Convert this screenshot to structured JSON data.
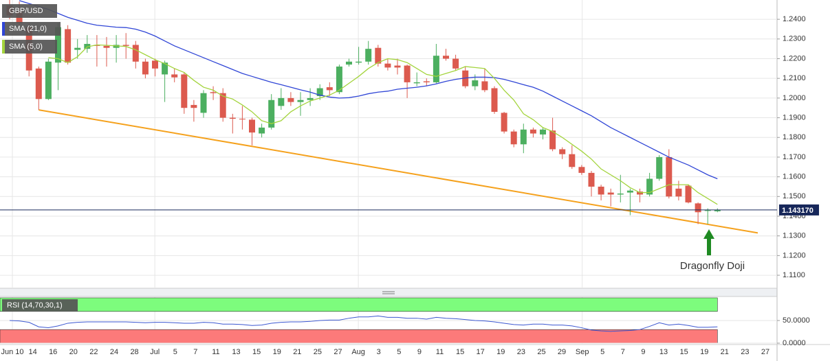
{
  "chart_data": [
    {
      "type": "candlestick",
      "symbol": "GBP/USD",
      "up_color": "#4caf60",
      "down_color": "#dc5a4e",
      "open": [
        1.247,
        1.244,
        1.236,
        1.215,
        1.1995,
        1.218,
        1.235,
        1.2245,
        1.225,
        1.227,
        1.2265,
        1.2255,
        1.227,
        1.227,
        1.2185,
        1.219,
        1.212,
        1.212,
        1.212,
        1.1965,
        1.1925,
        1.203,
        1.2025,
        1.19,
        1.1895,
        1.189,
        1.182,
        1.185,
        1.196,
        1.2,
        1.198,
        1.199,
        1.201,
        1.2055,
        1.203,
        1.217,
        1.218,
        1.2185,
        1.2255,
        1.2175,
        1.2165,
        1.2165,
        1.2075,
        1.2085,
        1.208,
        1.2215,
        1.22,
        1.214,
        1.206,
        1.2085,
        1.205,
        1.1925,
        1.183,
        1.1765,
        1.184,
        1.1815,
        1.1835,
        1.174,
        1.1715,
        1.165,
        1.162,
        1.155,
        1.152,
        1.151,
        1.152,
        1.1525,
        1.151,
        1.159,
        1.17,
        1.154,
        1.1555,
        1.1465,
        1.143,
        1.1425
      ],
      "high": [
        1.2498,
        1.249,
        1.238,
        1.216,
        1.22,
        1.238,
        1.237,
        1.23,
        1.232,
        1.232,
        1.231,
        1.232,
        1.233,
        1.229,
        1.22,
        1.22,
        1.219,
        1.215,
        1.213,
        1.199,
        1.204,
        1.206,
        1.205,
        1.192,
        1.196,
        1.19,
        1.187,
        1.202,
        1.205,
        1.203,
        1.203,
        1.205,
        1.207,
        1.208,
        1.217,
        1.22,
        1.226,
        1.229,
        1.227,
        1.22,
        1.22,
        1.217,
        1.213,
        1.21,
        1.2275,
        1.225,
        1.222,
        1.216,
        1.212,
        1.215,
        1.206,
        1.193,
        1.184,
        1.187,
        1.185,
        1.185,
        1.19,
        1.175,
        1.176,
        1.166,
        1.163,
        1.156,
        1.154,
        1.161,
        1.154,
        1.154,
        1.162,
        1.171,
        1.174,
        1.158,
        1.156,
        1.147,
        1.144,
        1.144
      ],
      "low": [
        1.24,
        1.236,
        1.211,
        1.194,
        1.199,
        1.204,
        1.217,
        1.22,
        1.223,
        1.216,
        1.216,
        1.218,
        1.22,
        1.215,
        1.21,
        1.211,
        1.198,
        1.208,
        1.192,
        1.188,
        1.19,
        1.199,
        1.188,
        1.182,
        1.184,
        1.176,
        1.18,
        1.184,
        1.194,
        1.196,
        1.191,
        1.196,
        1.199,
        1.201,
        1.202,
        1.216,
        1.217,
        1.217,
        1.216,
        1.214,
        1.212,
        1.2,
        1.206,
        1.206,
        1.2075,
        1.219,
        1.214,
        1.205,
        1.204,
        1.203,
        1.192,
        1.182,
        1.175,
        1.172,
        1.18,
        1.179,
        1.173,
        1.169,
        1.164,
        1.161,
        1.15,
        1.148,
        1.145,
        1.147,
        1.1405,
        1.147,
        1.15,
        1.158,
        1.149,
        1.148,
        1.1465,
        1.136,
        1.136,
        1.142
      ],
      "close": [
        1.242,
        1.238,
        1.214,
        1.1995,
        1.2185,
        1.236,
        1.218,
        1.2255,
        1.2275,
        1.2265,
        1.2255,
        1.227,
        1.2265,
        1.2185,
        1.212,
        1.215,
        1.218,
        1.2105,
        1.195,
        1.195,
        1.2025,
        1.2025,
        1.19,
        1.1895,
        1.1892,
        1.1825,
        1.185,
        1.199,
        1.2,
        1.198,
        1.199,
        1.2,
        1.205,
        1.204,
        1.216,
        1.2185,
        1.2185,
        1.225,
        1.2175,
        1.2155,
        1.2155,
        1.208,
        1.208,
        1.208,
        1.2215,
        1.22,
        1.215,
        1.206,
        1.209,
        1.204,
        1.193,
        1.183,
        1.1765,
        1.184,
        1.182,
        1.184,
        1.174,
        1.1715,
        1.165,
        1.162,
        1.155,
        1.151,
        1.151,
        1.1515,
        1.153,
        1.151,
        1.159,
        1.17,
        1.15,
        1.15,
        1.147,
        1.142,
        1.143,
        1.14317
      ],
      "series": [
        {
          "name": "SMA (21,0)",
          "color": "#2f45d6",
          "values": [
            null,
            1.2495,
            1.248,
            1.2465,
            1.245,
            1.243,
            1.241,
            1.2395,
            1.238,
            1.237,
            1.2365,
            1.236,
            1.2358,
            1.235,
            1.2335,
            1.2315,
            1.229,
            1.2265,
            1.2245,
            1.2225,
            1.2205,
            1.2185,
            1.2165,
            1.2145,
            1.2125,
            1.211,
            1.2095,
            1.208,
            1.2068,
            1.2055,
            1.2042,
            1.203,
            1.2015,
            1.2005,
            1.2,
            1.2002,
            1.201,
            1.2022,
            1.203,
            1.2035,
            1.2045,
            1.205,
            1.2055,
            1.2062,
            1.2072,
            1.2085,
            1.2095,
            1.2102,
            1.2106,
            1.2106,
            1.2104,
            1.2095,
            1.2082,
            1.2068,
            1.2055,
            1.2035,
            1.201,
            1.1985,
            1.196,
            1.1935,
            1.191,
            1.188,
            1.185,
            1.1825,
            1.18,
            1.1775,
            1.175,
            1.1725,
            1.17,
            1.168,
            1.166,
            1.1635,
            1.161,
            1.159
          ]
        },
        {
          "name": "SMA (5,0)",
          "color": "#a3d43c",
          "values": [
            null,
            null,
            null,
            null,
            1.2205,
            1.22,
            1.218,
            1.221,
            1.226,
            1.227,
            1.2268,
            1.2265,
            1.2262,
            1.2245,
            1.222,
            1.2195,
            1.2175,
            1.215,
            1.213,
            1.209,
            1.2055,
            1.204,
            1.201,
            1.1995,
            1.1965,
            1.193,
            1.1885,
            1.187,
            1.1885,
            1.193,
            1.196,
            1.1985,
            1.2,
            1.2015,
            1.204,
            1.2075,
            1.211,
            1.215,
            1.218,
            1.22,
            1.2195,
            1.218,
            1.215,
            1.212,
            1.211,
            1.2125,
            1.214,
            1.216,
            1.2155,
            1.215,
            1.21,
            1.204,
            1.199,
            1.192,
            1.189,
            1.185,
            1.183,
            1.18,
            1.1765,
            1.173,
            1.169,
            1.164,
            1.161,
            1.158,
            1.1545,
            1.152,
            1.152,
            1.154,
            1.156,
            1.156,
            1.156,
            1.152,
            1.149,
            1.146
          ]
        }
      ],
      "trendline": {
        "color": "#f5a11c",
        "values": [
          1.194,
          1.1315
        ]
      },
      "last_price": {
        "value": 1.14317,
        "label": "1.143170",
        "color": "#17275a"
      },
      "annotation": {
        "text": "Dragonfly Doji",
        "color": "#3aa83a"
      },
      "ylim": [
        1.1034,
        1.2498
      ],
      "yticks": [
        {
          "value": 1.24,
          "label": "1.2400"
        },
        {
          "value": 1.23,
          "label": "1.2300"
        },
        {
          "value": 1.22,
          "label": "1.2200"
        },
        {
          "value": 1.21,
          "label": "1.2100"
        },
        {
          "value": 1.2,
          "label": "1.2000"
        },
        {
          "value": 1.19,
          "label": "1.1900"
        },
        {
          "value": 1.18,
          "label": "1.1800"
        },
        {
          "value": 1.17,
          "label": "1.1700"
        },
        {
          "value": 1.16,
          "label": "1.1600"
        },
        {
          "value": 1.15,
          "label": "1.1500"
        },
        {
          "value": 1.14,
          "label": "1.1400"
        },
        {
          "value": 1.13,
          "label": "1.1300"
        },
        {
          "value": 1.12,
          "label": "1.1200"
        },
        {
          "value": 1.11,
          "label": "1.1100"
        }
      ],
      "grid": true,
      "x_labels": [
        "Jun 10",
        "14",
        "16",
        "20",
        "22",
        "24",
        "28",
        "Jul",
        "5",
        "7",
        "11",
        "13",
        "15",
        "19",
        "21",
        "25",
        "27",
        "Aug",
        "3",
        "5",
        "9",
        "11",
        "15",
        "17",
        "19",
        "23",
        "25",
        "29",
        "Sep",
        "5",
        "7",
        "9",
        "13",
        "15",
        "19",
        "21",
        "23",
        "27"
      ]
    },
    {
      "type": "line",
      "name": "RSI (14,70,30,1)",
      "color": "#3a56d0",
      "values": [
        50,
        49,
        46,
        36,
        34,
        38,
        44,
        46,
        47,
        47,
        47,
        47,
        47,
        46,
        45,
        46,
        46,
        45,
        44,
        44,
        46,
        45,
        42,
        42,
        41,
        39,
        40,
        44,
        46,
        47,
        47,
        48,
        50,
        51,
        51,
        55,
        58,
        58,
        60,
        57,
        57,
        55,
        55,
        53,
        57,
        55,
        54,
        52,
        50,
        49,
        47,
        44,
        41,
        40,
        42,
        42,
        40,
        40,
        38,
        34,
        29,
        27,
        26,
        27,
        28,
        30,
        37,
        45,
        40,
        42,
        39,
        35,
        35,
        36
      ],
      "bands": [
        {
          "from": 70,
          "to": 100,
          "color": "#7dfc7d"
        },
        {
          "from": 0,
          "to": 30,
          "color": "#fc7a7a"
        }
      ],
      "ylim": [
        0,
        103
      ],
      "yticks": [
        {
          "value": 50,
          "label": "50.0000"
        },
        {
          "value": 0,
          "label": "0.0000"
        }
      ]
    }
  ]
}
